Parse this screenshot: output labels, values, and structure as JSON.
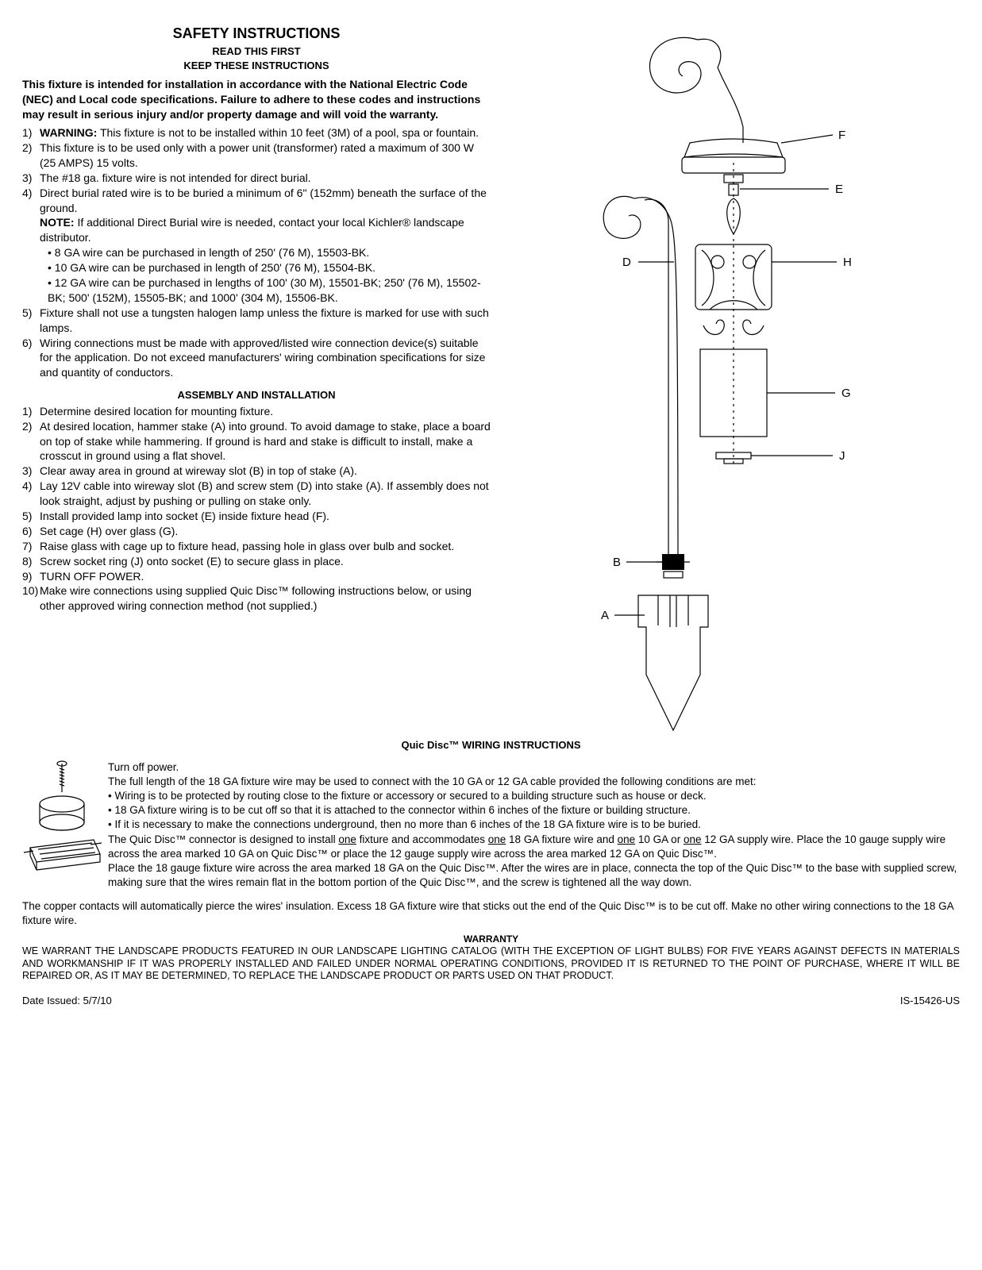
{
  "title": "SAFETY INSTRUCTIONS",
  "subtitle1": "READ THIS FIRST",
  "subtitle2": "KEEP THESE INSTRUCTIONS",
  "intro": "This fixture is intended for installation in accordance with the National Electric Code (NEC) and Local code specifications.  Failure to adhere to these codes and instructions may result in serious injury and/or property damage and will void the warranty.",
  "safety_items": [
    {
      "num": "1)",
      "pre": "WARNING:",
      "text": " This fixture is not to be installed within 10 feet (3M) of a pool, spa or fountain."
    },
    {
      "num": "2)",
      "text": "This fixture is to be used only with a power unit (transformer) rated a maximum of 300 W (25 AMPS) 15 volts."
    },
    {
      "num": "3)",
      "text": "The #18 ga. fixture wire is not intended for direct burial."
    },
    {
      "num": "4)",
      "text": "Direct burial rated wire is to be buried a minimum of 6\" (152mm) beneath the surface of the ground.",
      "note_label": "NOTE:",
      "note_text": " If additional Direct Burial wire is needed, contact your local Kichler® landscape distributor.",
      "bullets": [
        "8 GA wire can be purchased in length of 250' (76 M), 15503-BK.",
        "10 GA wire can be purchased in length of 250' (76 M), 15504-BK.",
        "12 GA wire can be purchased in lengths of 100' (30 M), 15501-BK; 250' (76 M), 15502-BK; 500' (152M), 15505-BK; and 1000' (304 M), 15506-BK."
      ]
    },
    {
      "num": "5)",
      "text": "Fixture shall not use a tungsten halogen lamp unless the fixture is marked for use with such lamps."
    },
    {
      "num": "6)",
      "text": "Wiring connections must be made with approved/listed wire connection device(s) suitable for the application. Do not exceed manufacturers' wiring combination specifications for size and quantity of conductors."
    }
  ],
  "assembly_head": "ASSEMBLY AND INSTALLATION",
  "assembly_items": [
    {
      "num": "1)",
      "text": "Determine desired location for mounting fixture."
    },
    {
      "num": "2)",
      "text": "At desired location, hammer stake (A) into ground. To avoid damage to stake, place a board on top of stake while hammering. If ground is hard and stake is difficult to install, make a crosscut in ground using a flat shovel."
    },
    {
      "num": "3)",
      "text": "Clear away area in ground at wireway slot (B) in top of stake (A)."
    },
    {
      "num": "4)",
      "text": "Lay 12V cable into wireway slot (B) and screw stem (D) into stake (A). If assembly does not look straight, adjust by pushing or pulling on stake only."
    },
    {
      "num": "5)",
      "text": "Install provided lamp into socket (E) inside fixture head (F)."
    },
    {
      "num": "6)",
      "text": "Set cage (H) over glass (G)."
    },
    {
      "num": "7)",
      "text": "Raise glass with cage up to fixture head, passing hole in glass over bulb and socket."
    },
    {
      "num": "8)",
      "text": "Screw socket ring (J) onto socket (E) to secure glass in place."
    },
    {
      "num": "9)",
      "text": "TURN OFF POWER."
    },
    {
      "num": "10)",
      "text": "Make wire connections using supplied Quic Disc™ following instructions below, or using other approved wiring connection method (not supplied.)"
    }
  ],
  "diagram_labels": {
    "A": "A",
    "B": "B",
    "D": "D",
    "E": "E",
    "F": "F",
    "G": "G",
    "H": "H",
    "J": "J"
  },
  "quic_head": "Quic Disc™ WIRING INSTRUCTIONS",
  "quic_p0": "Turn off power.",
  "quic_p1": "The full length of the 18 GA fixture wire may be used to connect with the 10 GA or 12 GA cable provided the following conditions are met:",
  "quic_bullets": [
    "Wiring is to be protected by routing close to the fixture or accessory or secured to a building structure such as house or deck.",
    "18 GA fixture wiring is to be cut off so that it is attached to the connector within 6 inches of the fixture or building structure.",
    "If it is necessary to make the connections underground, then no more than 6 inches of the 18 GA fixture wire is to be buried."
  ],
  "quic_p2a": "The Quic Disc™ connector is designed to install ",
  "quic_p2_one1": "one",
  "quic_p2b": " fixture and accommodates ",
  "quic_p2_one2": "one",
  "quic_p2c": " 18 GA fixture wire and ",
  "quic_p2_one3": "one",
  "quic_p2d": " 10 GA or ",
  "quic_p2_one4": "one",
  "quic_p2e": " 12 GA supply wire. Place the 10 gauge supply wire across the area marked 10 GA on Quic Disc™ or place the 12 gauge supply wire across the area marked 12 GA on Quic Disc™.",
  "quic_p3": "Place the 18 gauge fixture wire across the area marked 18 GA on the Quic Disc™. After the wires are in place, connecta the top of the Quic Disc™ to the base with supplied screw, making sure that the wires remain flat in the bottom portion of the Quic Disc™, and the screw is tightened all the way down.",
  "quic_p4": "The copper contacts will automatically pierce the wires' insulation. Excess 18 GA fixture wire that sticks out the end of the Quic Disc™ is to be cut off. Make no other wiring connections to the 18 GA fixture wire.",
  "warranty_head": "WARRANTY",
  "warranty_body": "WE WARRANT THE LANDSCAPE PRODUCTS FEATURED IN OUR LANDSCAPE LIGHTING CATALOG (WITH THE EXCEPTION OF LIGHT BULBS) FOR FIVE YEARS AGAINST DEFECTS IN MATERIALS AND WORKMANSHIP IF IT WAS PROPERLY INSTALLED AND FAILED UNDER NORMAL OPERATING CONDITIONS, PROVIDED IT IS RETURNED TO THE POINT OF PURCHASE, WHERE IT WILL BE REPAIRED OR, AS IT MAY BE DETERMINED, TO REPLACE THE LANDSCAPE PRODUCT OR PARTS USED ON THAT PRODUCT.",
  "footer_left": "Date Issued: 5/7/10",
  "footer_right": "IS-15426-US"
}
